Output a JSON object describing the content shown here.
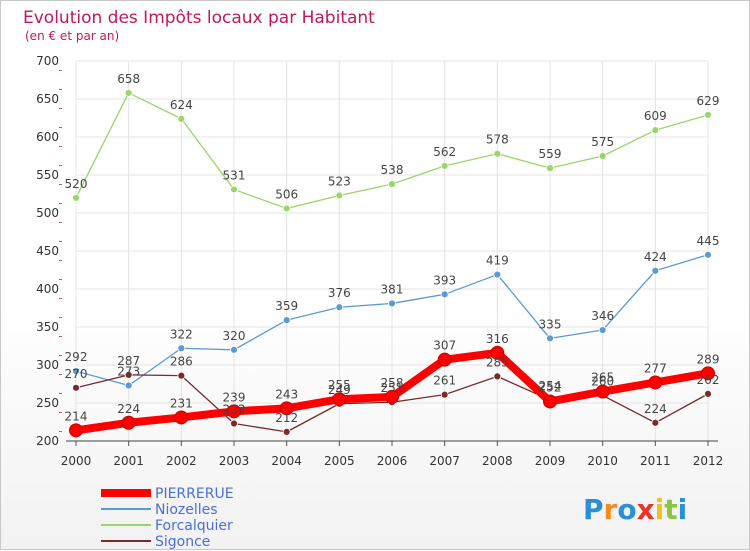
{
  "chart_data": {
    "type": "line",
    "title": "Evolution des Impôts locaux par Habitant",
    "subtitle": "(en € et par an)",
    "xlabel": "",
    "ylabel": "",
    "x": [
      "2000",
      "2001",
      "2002",
      "2003",
      "2004",
      "2005",
      "2006",
      "2007",
      "2008",
      "2009",
      "2010",
      "2011",
      "2012"
    ],
    "ylim": [
      200,
      700
    ],
    "yticks": [
      200,
      250,
      300,
      350,
      400,
      450,
      500,
      550,
      600,
      650,
      700
    ],
    "grid": true,
    "legend_position": "bottom-left",
    "series": [
      {
        "name": "PIERRERUE",
        "color": "#ff0000",
        "values": [
          214,
          224,
          231,
          239,
          243,
          255,
          258,
          307,
          316,
          252,
          265,
          277,
          289
        ]
      },
      {
        "name": "Niozelles",
        "color": "#5a9bd4",
        "values": [
          292,
          273,
          322,
          320,
          359,
          376,
          381,
          393,
          419,
          335,
          346,
          424,
          445
        ]
      },
      {
        "name": "Forcalquier",
        "color": "#9ad66a",
        "values": [
          520,
          658,
          624,
          531,
          506,
          523,
          538,
          562,
          578,
          559,
          575,
          609,
          629
        ]
      },
      {
        "name": "Sigonce",
        "color": "#7a2a2a",
        "values": [
          270,
          287,
          286,
          223,
          212,
          249,
          251,
          261,
          285,
          254,
          260,
          224,
          262
        ]
      }
    ]
  },
  "logo": {
    "text": "Proxiti",
    "colors": [
      "#2a8fd6",
      "#f28c1a",
      "#2a8fd6",
      "#e8322a",
      "#f2c21a",
      "#8cc63f",
      "#2a8fd6"
    ]
  }
}
